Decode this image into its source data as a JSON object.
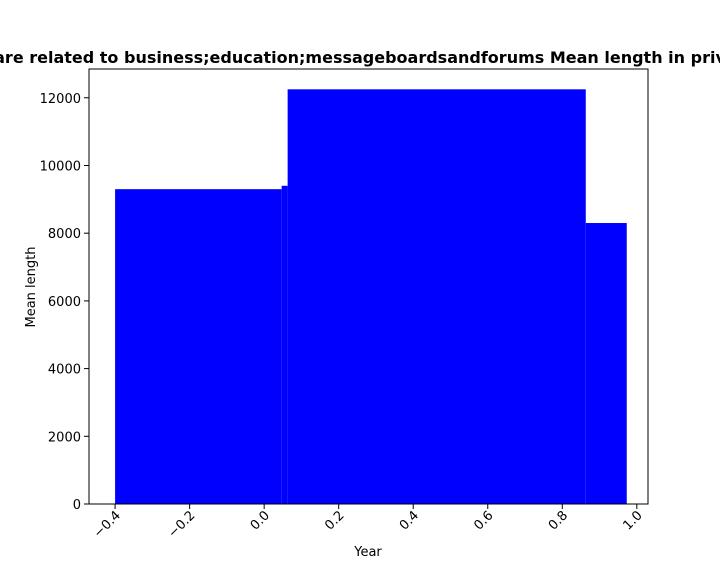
{
  "chart_data": {
    "type": "bar",
    "title": "are related to business;education;messageboardsandforums Mean length in priv",
    "xlabel": "Year",
    "ylabel": "Mean length",
    "xlim": [
      -0.47,
      1.03
    ],
    "ylim": [
      0,
      12850
    ],
    "xticks": [
      -0.4,
      -0.2,
      0.0,
      0.2,
      0.4,
      0.6,
      0.8,
      1.0
    ],
    "xtick_labels": [
      "−0.4",
      "−0.2",
      "0.0",
      "0.2",
      "0.4",
      "0.6",
      "0.8",
      "1.0"
    ],
    "yticks": [
      0,
      2000,
      4000,
      6000,
      8000,
      10000,
      12000
    ],
    "ytick_labels": [
      "0",
      "2000",
      "4000",
      "6000",
      "8000",
      "10000",
      "12000"
    ],
    "bar_color": "#0000ff",
    "grid": false,
    "legend": "none",
    "bars": [
      {
        "x0": -0.4,
        "x1": 0.047,
        "value": 9300
      },
      {
        "x0": 0.047,
        "x1": 0.063,
        "value": 9400
      },
      {
        "x0": 0.063,
        "x1": 0.863,
        "value": 12250
      },
      {
        "x0": 0.863,
        "x1": 0.973,
        "value": 8300
      }
    ]
  }
}
